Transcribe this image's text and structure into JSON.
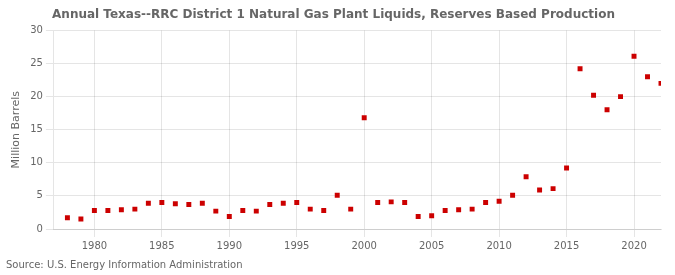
{
  "chart_data": {
    "type": "scatter",
    "title": "Annual Texas--RRC District 1 Natural Gas Plant Liquids, Reserves Based Production",
    "ylabel": "Million Barrels",
    "annotations": [
      "Source: U.S. Energy Information Administration"
    ],
    "color": "#cc0000",
    "marker": "square",
    "grid": true,
    "xlim": [
      1977,
      2022
    ],
    "ylim": [
      0,
      30
    ],
    "xticks": [
      1980,
      1985,
      1990,
      1995,
      2000,
      2005,
      2010,
      2015,
      2020
    ],
    "yticks": [
      0,
      5,
      10,
      15,
      20,
      25,
      30
    ],
    "x": [
      1978,
      1979,
      1980,
      1981,
      1982,
      1983,
      1984,
      1985,
      1986,
      1987,
      1988,
      1989,
      1990,
      1991,
      1992,
      1993,
      1994,
      1995,
      1996,
      1997,
      1998,
      1999,
      2000,
      2001,
      2002,
      2003,
      2004,
      2005,
      2006,
      2007,
      2008,
      2009,
      2010,
      2011,
      2012,
      2013,
      2014,
      2015,
      2016,
      2017,
      2018,
      2019,
      2020,
      2021,
      2022
    ],
    "values": [
      1.7,
      1.5,
      2.8,
      2.8,
      2.9,
      3.0,
      3.9,
      4.0,
      3.8,
      3.7,
      3.9,
      2.7,
      1.9,
      2.8,
      2.7,
      3.7,
      3.9,
      4.0,
      3.0,
      2.8,
      5.1,
      3.0,
      16.8,
      4.0,
      4.1,
      4.0,
      1.9,
      2.0,
      2.8,
      2.9,
      3.0,
      4.0,
      4.2,
      5.1,
      7.9,
      5.9,
      6.1,
      9.2,
      24.2,
      20.2,
      18.0,
      20.0,
      26.1,
      23.0,
      22.0
    ]
  }
}
